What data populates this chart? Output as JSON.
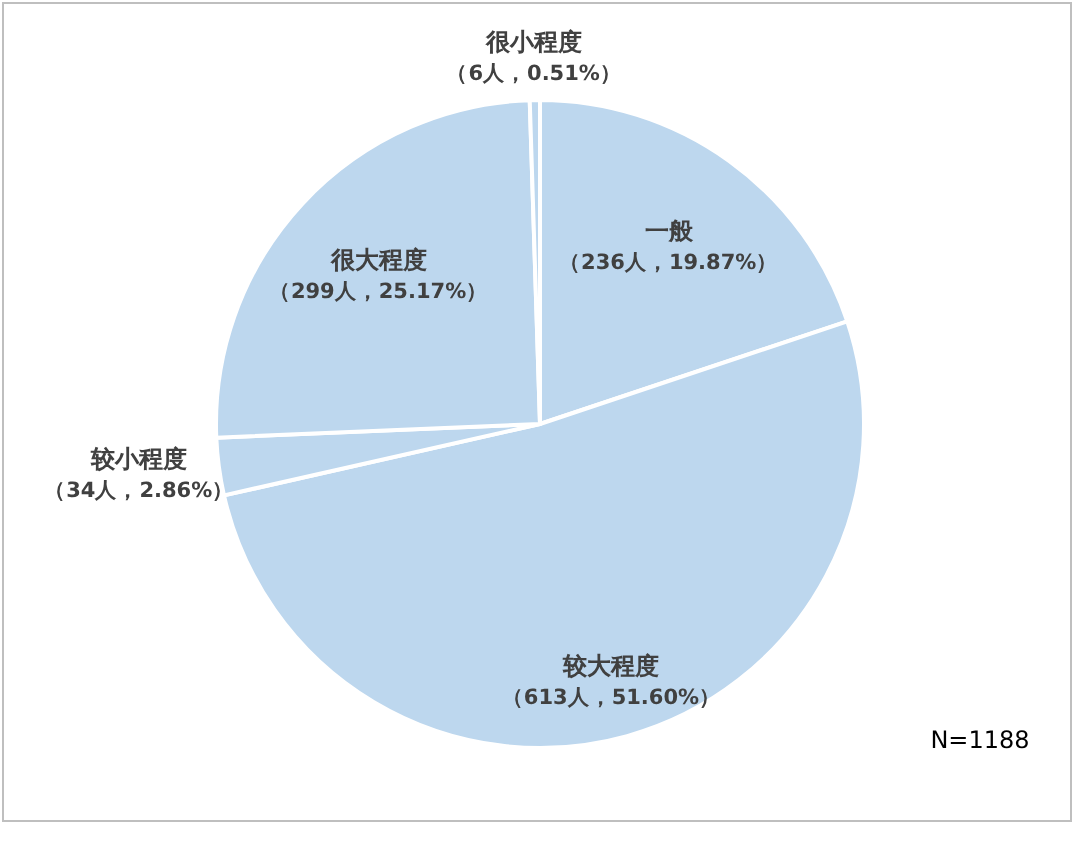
{
  "chart_data": {
    "type": "pie",
    "categories": [
      "一般",
      "较大程度",
      "较小程度",
      "很大程度",
      "很小程度"
    ],
    "values": [
      236,
      613,
      34,
      299,
      6
    ],
    "value_labels": [
      "（236人，19.87%）",
      "（613人，51.60%）",
      "（34人，2.86%）",
      "（299人，25.17%）",
      "（6人，0.51%）"
    ],
    "colors": [
      "#bdd7ee",
      "#bdd7ee",
      "#bdd7ee",
      "#bdd7ee",
      "#bdd7ee"
    ],
    "legend": false,
    "annotations": [
      "N=1188"
    ]
  }
}
